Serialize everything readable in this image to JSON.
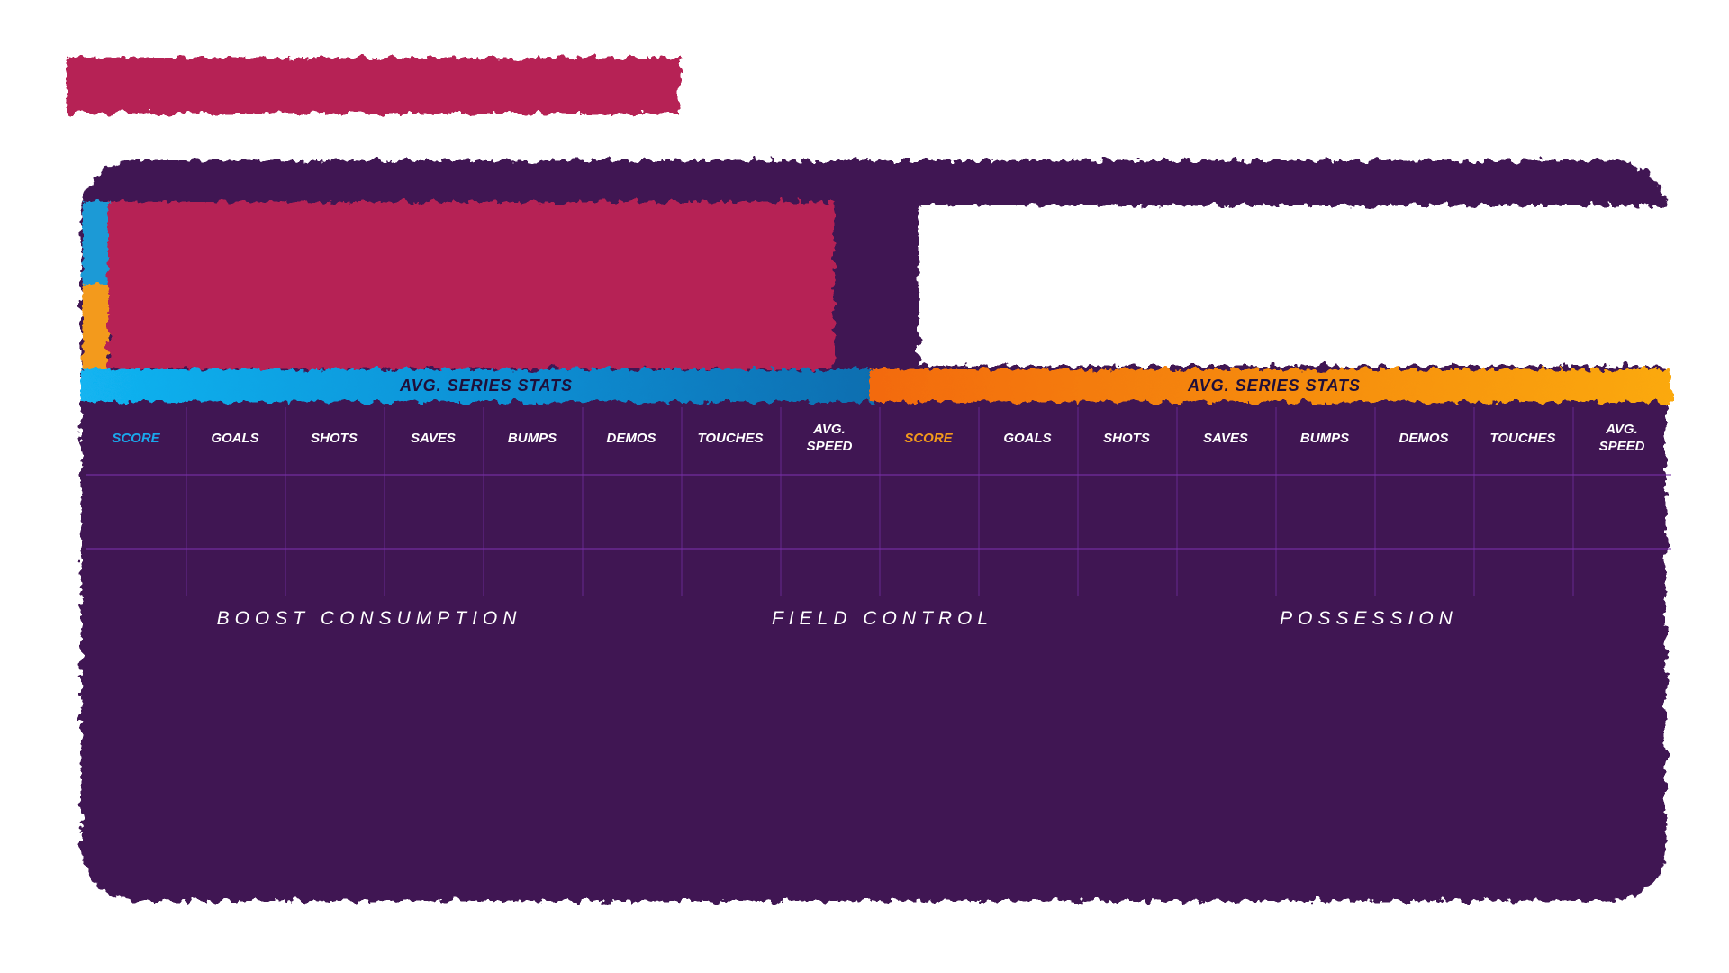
{
  "strips": {
    "left_label": "AVG. SERIES STATS",
    "right_label": "AVG. SERIES STATS"
  },
  "left_columns": [
    "SCORE",
    "GOALS",
    "SHOTS",
    "SAVES",
    "BUMPS",
    "DEMOS",
    "TOUCHES",
    "AVG.\nSPEED"
  ],
  "right_columns": [
    "SCORE",
    "GOALS",
    "SHOTS",
    "SAVES",
    "BUMPS",
    "DEMOS",
    "TOUCHES",
    "AVG.\nSPEED"
  ],
  "sections": {
    "boost": "BOOST CONSUMPTION",
    "field": "FIELD CONTROL",
    "possession": "POSSESSION"
  },
  "colors": {
    "panel": "#3f1253",
    "crimson": "#b62454",
    "blue": "#12b4f1",
    "orange": "#f5870f"
  }
}
